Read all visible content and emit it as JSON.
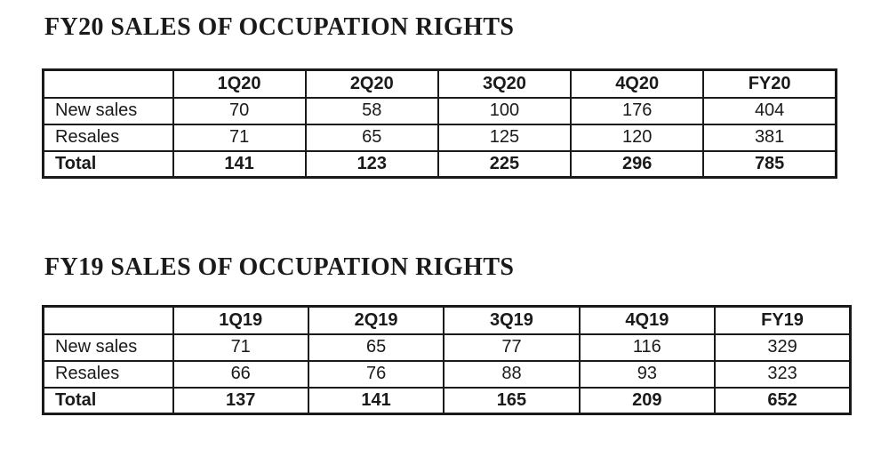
{
  "colors": {
    "text": "#1a1a1a",
    "border": "#1a1a1a",
    "background": "#ffffff"
  },
  "tables": [
    {
      "title": "FY20 SALES OF OCCUPATION RIGHTS",
      "columns": [
        "",
        "1Q20",
        "2Q20",
        "3Q20",
        "4Q20",
        "FY20"
      ],
      "rows": [
        {
          "label": "New sales",
          "values": [
            "70",
            "58",
            "100",
            "176",
            "404"
          ]
        },
        {
          "label": "Resales",
          "values": [
            "71",
            "65",
            "125",
            "120",
            "381"
          ]
        },
        {
          "label": "Total",
          "values": [
            "141",
            "123",
            "225",
            "296",
            "785"
          ],
          "bold": true
        }
      ]
    },
    {
      "title": "FY19 SALES OF OCCUPATION RIGHTS",
      "columns": [
        "",
        "1Q19",
        "2Q19",
        "3Q19",
        "4Q19",
        "FY19"
      ],
      "rows": [
        {
          "label": "New sales",
          "values": [
            "71",
            "65",
            "77",
            "116",
            "329"
          ]
        },
        {
          "label": "Resales",
          "values": [
            "66",
            "76",
            "88",
            "93",
            "323"
          ]
        },
        {
          "label": "Total",
          "values": [
            "137",
            "141",
            "165",
            "209",
            "652"
          ],
          "bold": true
        }
      ]
    }
  ]
}
